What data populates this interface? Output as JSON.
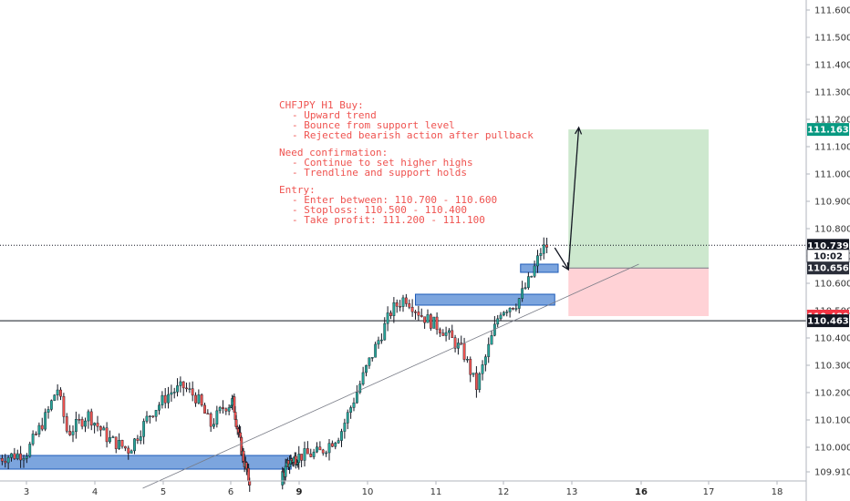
{
  "chart_data": {
    "type": "candlestick",
    "symbol_note": {
      "title": "CHFJPY H1 Buy:",
      "reasons": [
        "- Upward trend",
        "- Bounce from support level",
        "- Rejected bearish action after pullback"
      ],
      "confirmation_title": "Need confirmation:",
      "confirmations": [
        "- Continue to set higher highs",
        "- Trendline and support holds"
      ],
      "entry_title": "Entry:",
      "entries": [
        "- Enter between: 110.700 - 110.600",
        "- Stoploss: 110.500 - 110.400",
        "- Take profit: 111.200 - 111.100"
      ]
    },
    "y_ticks": [
      "111.600",
      "111.500",
      "111.400",
      "111.300",
      "111.200",
      "111.100",
      "111.000",
      "110.900",
      "110.800",
      "110.700",
      "110.600",
      "110.500",
      "110.400",
      "110.300",
      "110.200",
      "110.100",
      "110.000",
      "109.910"
    ],
    "y_range": [
      109.88,
      111.65
    ],
    "x_ticks": [
      {
        "label": "3",
        "day": 3,
        "bold": false
      },
      {
        "label": "4",
        "day": 4,
        "bold": false
      },
      {
        "label": "5",
        "day": 5,
        "bold": false
      },
      {
        "label": "6",
        "day": 6,
        "bold": false
      },
      {
        "label": "9",
        "day": 9,
        "bold": true
      },
      {
        "label": "10",
        "day": 10,
        "bold": false
      },
      {
        "label": "11",
        "day": 11,
        "bold": false
      },
      {
        "label": "12",
        "day": 12,
        "bold": false
      },
      {
        "label": "13",
        "day": 13,
        "bold": false
      },
      {
        "label": "16",
        "day": 16,
        "bold": true
      },
      {
        "label": "17",
        "day": 17,
        "bold": false
      },
      {
        "label": "18",
        "day": 18,
        "bold": false
      }
    ],
    "price_tags": [
      {
        "label": "111.163",
        "value": 111.163,
        "bg": "#089981",
        "color": "#ffffff"
      },
      {
        "label": "110.739",
        "value": 110.739,
        "bg": "#131722",
        "color": "#ffffff"
      },
      {
        "label": "10:02",
        "value": 110.7,
        "bg": "#ffffff",
        "color": "#131722"
      },
      {
        "label": "110.656",
        "value": 110.656,
        "bg": "#2a2e39",
        "color": "#ffffff"
      },
      {
        "label": "110.480",
        "value": 110.48,
        "bg": "#f23645",
        "color": "#ffffff"
      },
      {
        "label": "110.463",
        "value": 110.463,
        "bg": "#131722",
        "color": "#ffffff"
      }
    ],
    "price_lines": [
      {
        "value": 110.739,
        "style": "dotted"
      },
      {
        "value": 110.463,
        "style": "solid"
      }
    ],
    "support_zones": [
      {
        "day_start": 2.6,
        "day_end": 8.65,
        "low": 109.92,
        "high": 109.97
      },
      {
        "day_start": 10.7,
        "day_end": 12.75,
        "low": 110.52,
        "high": 110.56
      },
      {
        "day_start": 12.25,
        "day_end": 12.8,
        "low": 110.64,
        "high": 110.67
      }
    ],
    "trendline": {
      "from": {
        "day": 4.7,
        "value": 109.85
      },
      "to": {
        "day": 15.9,
        "value": 110.67
      }
    },
    "position": {
      "day_start": 12.95,
      "day_end": 17.0,
      "entry": 110.656,
      "target": 111.163,
      "stop": 110.48
    },
    "arrows": [
      {
        "from": {
          "day": 12.75,
          "value": 110.73
        },
        "to": {
          "day": 12.95,
          "value": 110.65
        }
      },
      {
        "from": {
          "day": 12.95,
          "value": 110.65
        },
        "to": {
          "day": 13.3,
          "value": 111.17
        }
      }
    ],
    "colors": {
      "up": "#26a69a",
      "down": "#ef5350",
      "zone": "#5b8fd6",
      "profit": "#c8e6c9",
      "loss": "#ffcdd2",
      "note": "#ef5350"
    }
  }
}
